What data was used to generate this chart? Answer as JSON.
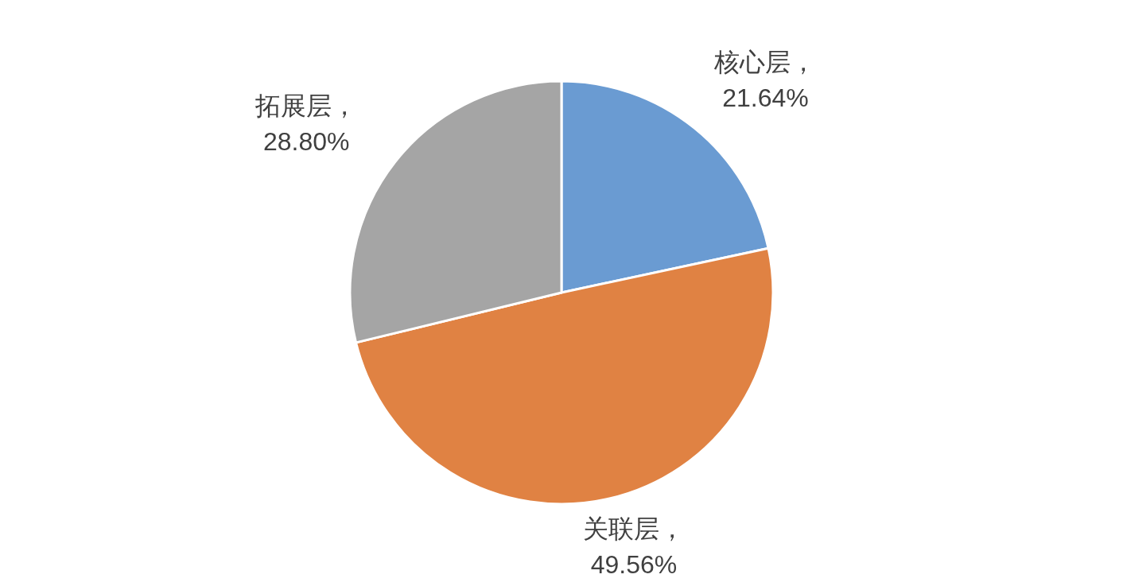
{
  "chart_data": {
    "type": "pie",
    "categories": [
      "核心层",
      "关联层",
      "拓展层"
    ],
    "values": [
      21.64,
      49.56,
      28.8
    ],
    "colors": [
      "#6a9bd2",
      "#e08243",
      "#a5a5a5"
    ],
    "value_labels": [
      "，21.64%",
      "，49.56%",
      "，28.80%"
    ]
  }
}
